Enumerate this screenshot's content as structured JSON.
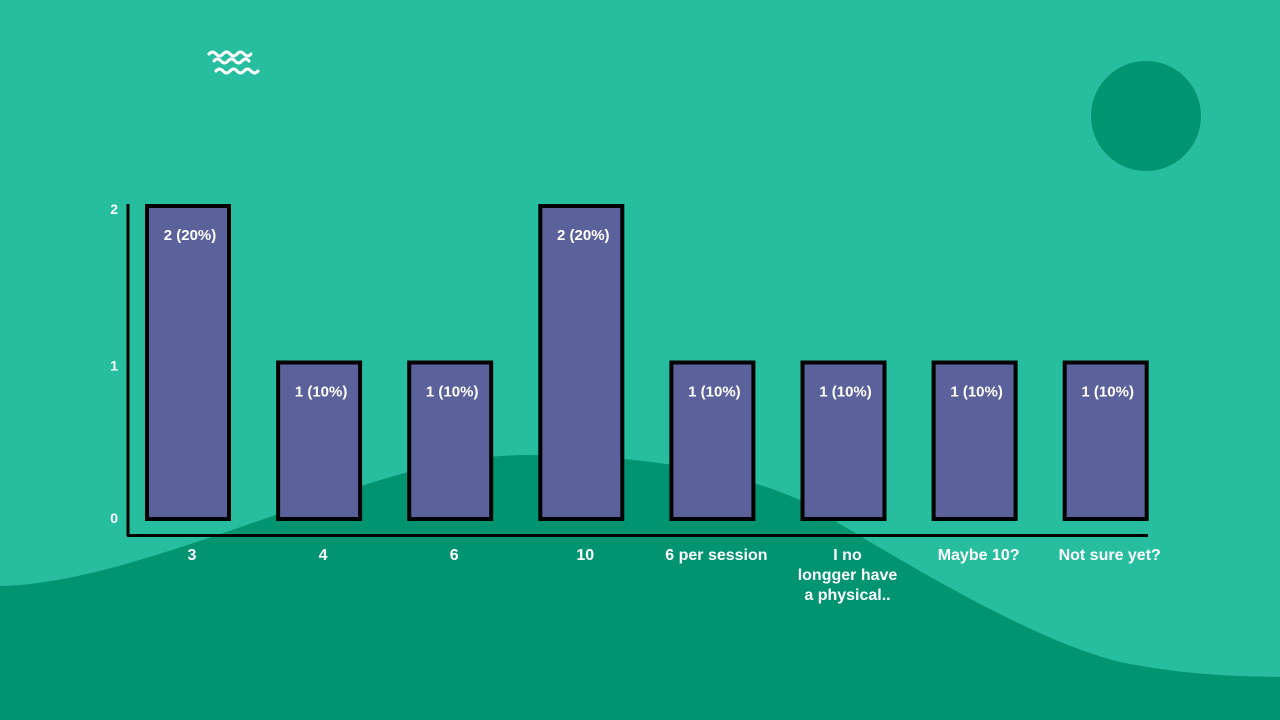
{
  "colors": {
    "background": "#26BE9F",
    "hill": "#009471",
    "bar_fill": "#5B619A",
    "bar_stroke": "#000000",
    "text": "#FFFFFF",
    "axis": "#000000"
  },
  "decor": {
    "logo_icon": "wave-lines-icon",
    "circle_icon": "circle-decoration"
  },
  "chart_data": {
    "type": "bar",
    "categories": [
      "3",
      "4",
      "6",
      "10",
      "6 per session",
      "I no longger have a physical..",
      "Maybe 10?",
      "Not sure yet?"
    ],
    "category_lines": [
      [
        "3"
      ],
      [
        "4"
      ],
      [
        "6"
      ],
      [
        "10"
      ],
      [
        "6 per session"
      ],
      [
        "I no",
        "longger have",
        "a physical.."
      ],
      [
        "Maybe 10?"
      ],
      [
        "Not sure yet?"
      ]
    ],
    "values": [
      2,
      1,
      1,
      2,
      1,
      1,
      1,
      1
    ],
    "data_labels": [
      "2 (20%)",
      "1 (10%)",
      "1 (10%)",
      "2 (20%)",
      "1 (10%)",
      "1 (10%)",
      "1 (10%)",
      "1 (10%)"
    ],
    "y_ticks": [
      "0",
      "1",
      "2"
    ],
    "ylim": [
      0,
      2
    ],
    "grid": false,
    "legend": "none",
    "title": "",
    "xlabel": "",
    "ylabel": ""
  }
}
